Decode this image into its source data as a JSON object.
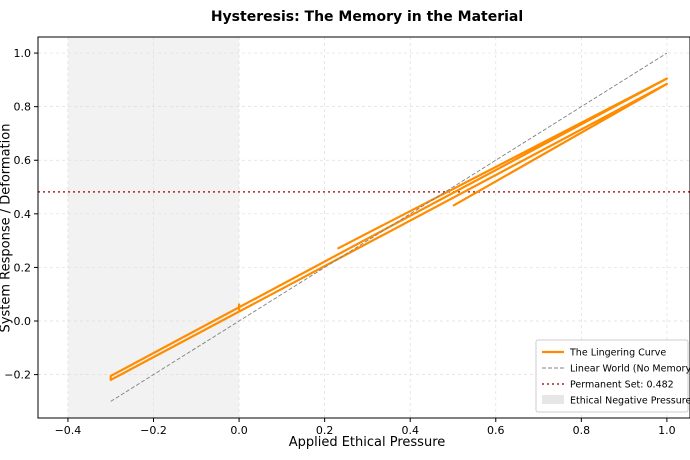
{
  "chart_data": {
    "type": "line",
    "title": "Hysteresis: The Memory in the Material",
    "xlabel": "Applied Ethical Pressure",
    "ylabel": "System Response / Deformation",
    "xlim": [
      -0.47,
      1.054
    ],
    "ylim": [
      -0.362,
      1.06
    ],
    "xticks": [
      {
        "value": -0.4,
        "label": "−0.4"
      },
      {
        "value": -0.2,
        "label": "−0.2"
      },
      {
        "value": 0,
        "label": "0.0"
      },
      0.2,
      0.4,
      0.6,
      0.8,
      {
        "value": 1,
        "label": "1.0"
      }
    ],
    "yticks": [
      {
        "value": -0.2,
        "label": "−0.2"
      },
      {
        "value": 0,
        "label": "0.0"
      },
      0.2,
      0.4,
      0.6,
      0.8,
      {
        "value": 1,
        "label": "1.0"
      }
    ],
    "grid": true,
    "legend": "lower right",
    "spans": [
      {
        "name": "Ethical Negative Pressure",
        "color": "#e6e6e6",
        "x": [
          -0.4,
          0
        ]
      }
    ],
    "series": [
      {
        "name": "The Lingering Curve",
        "color": "#ff8c00",
        "style": "solid",
        "x": [
          0.23,
          1.0,
          -0.3,
          -0.3,
          1.0,
          0.5,
          null,
          0.0,
          0.0
        ],
        "values": [
          0.27,
          0.905,
          -0.205,
          -0.22,
          0.885,
          0.43,
          null,
          0.04,
          0.065
        ]
      },
      {
        "name": "Linear World (No Memory)",
        "color": "#808080",
        "style": "dashed",
        "x": [
          -0.3,
          1.0
        ],
        "values": [
          -0.3,
          1.0
        ]
      }
    ],
    "hlines": [
      {
        "name": "Permanent Set: 0.482",
        "value": 0.482,
        "color": "#b22222"
      }
    ]
  }
}
